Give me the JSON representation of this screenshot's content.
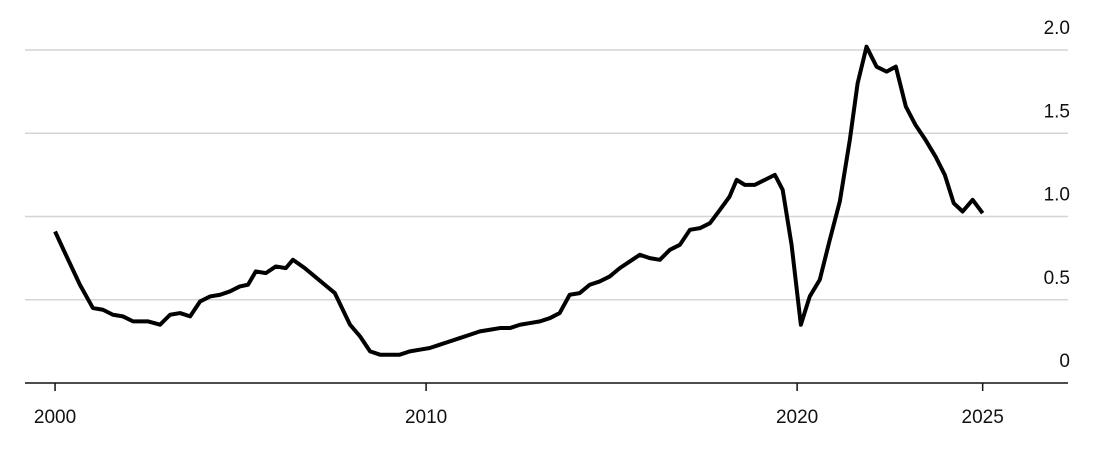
{
  "chart_data": {
    "type": "line",
    "x": [
      2000.0,
      2000.27,
      2000.67,
      2001.02,
      2001.29,
      2001.56,
      2001.83,
      2002.1,
      2002.51,
      2002.83,
      2003.1,
      2003.37,
      2003.64,
      2003.91,
      2004.18,
      2004.45,
      2004.71,
      2004.98,
      2005.2,
      2005.41,
      2005.68,
      2005.95,
      2006.22,
      2006.41,
      2006.73,
      2007.0,
      2007.27,
      2007.54,
      2007.95,
      2008.22,
      2008.49,
      2008.76,
      2009.02,
      2009.29,
      2009.56,
      2009.83,
      2010.1,
      2010.37,
      2010.64,
      2010.91,
      2011.18,
      2011.45,
      2011.72,
      2011.99,
      2012.26,
      2012.53,
      2012.8,
      2013.07,
      2013.34,
      2013.6,
      2013.87,
      2014.14,
      2014.41,
      2014.68,
      2014.95,
      2015.22,
      2015.49,
      2015.76,
      2016.03,
      2016.3,
      2016.57,
      2016.84,
      2017.11,
      2017.38,
      2017.65,
      2017.92,
      2018.18,
      2018.37,
      2018.59,
      2018.86,
      2019.13,
      2019.4,
      2019.61,
      2019.85,
      2020.1,
      2020.34,
      2020.61,
      2020.88,
      2021.15,
      2021.42,
      2021.63,
      2021.87,
      2022.14,
      2022.41,
      2022.66,
      2022.93,
      2023.19,
      2023.46,
      2023.73,
      2023.98,
      2024.22,
      2024.46,
      2024.73,
      2025.0
    ],
    "values": [
      0.91,
      0.78,
      0.59,
      0.45,
      0.44,
      0.41,
      0.4,
      0.37,
      0.37,
      0.35,
      0.41,
      0.42,
      0.4,
      0.49,
      0.52,
      0.53,
      0.55,
      0.58,
      0.59,
      0.67,
      0.66,
      0.7,
      0.69,
      0.74,
      0.69,
      0.64,
      0.59,
      0.54,
      0.35,
      0.28,
      0.19,
      0.17,
      0.17,
      0.17,
      0.19,
      0.2,
      0.21,
      0.23,
      0.25,
      0.27,
      0.29,
      0.31,
      0.32,
      0.33,
      0.33,
      0.35,
      0.36,
      0.37,
      0.39,
      0.42,
      0.53,
      0.54,
      0.59,
      0.61,
      0.64,
      0.69,
      0.73,
      0.77,
      0.75,
      0.74,
      0.8,
      0.83,
      0.92,
      0.93,
      0.96,
      1.04,
      1.12,
      1.22,
      1.19,
      1.19,
      1.22,
      1.25,
      1.16,
      0.83,
      0.35,
      0.52,
      0.62,
      0.86,
      1.09,
      1.46,
      1.8,
      2.02,
      1.9,
      1.87,
      1.9,
      1.66,
      1.55,
      1.46,
      1.36,
      1.25,
      1.08,
      1.03,
      1.1,
      1.02
    ],
    "color": "#000000",
    "xlim": [
      1999.19,
      2027.3
    ],
    "xticks": [
      2000,
      2010,
      2020,
      2025
    ],
    "ylim": [
      0,
      2.0
    ],
    "yticks": [
      0,
      {
        "value": 0.5,
        "label": "0.5"
      },
      {
        "value": 1.0,
        "label": "1.0"
      },
      {
        "value": 1.5,
        "label": "1.5"
      },
      {
        "value": 2.0,
        "label": "2.0"
      }
    ],
    "grid": true
  }
}
